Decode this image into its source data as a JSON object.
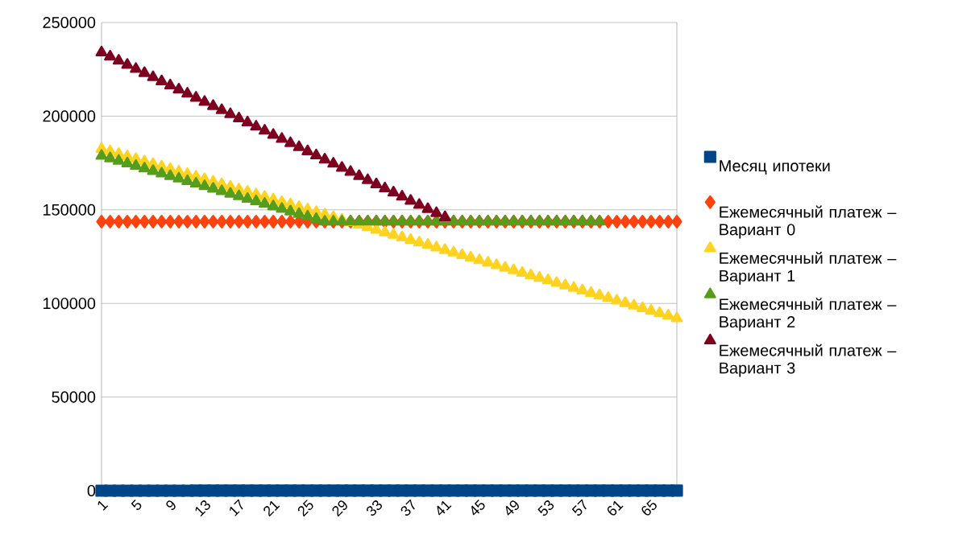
{
  "chart_data": {
    "type": "scatter",
    "categories": [
      "1",
      null,
      null,
      null,
      "5",
      null,
      null,
      null,
      "9",
      null,
      null,
      null,
      "13",
      null,
      null,
      null,
      "17",
      null,
      null,
      null,
      "21",
      null,
      null,
      null,
      "25",
      null,
      null,
      null,
      "29",
      null,
      null,
      null,
      "33",
      null,
      null,
      null,
      "37",
      null,
      null,
      null,
      "41",
      null,
      null,
      null,
      "45",
      null,
      null,
      null,
      "49",
      null,
      null,
      null,
      "53",
      null,
      null,
      null,
      "57",
      null,
      null,
      null,
      "61",
      null,
      null,
      null,
      "65",
      null,
      null,
      null
    ],
    "series": [
      {
        "name": "Месяц ипотеки",
        "color": "#004586",
        "marker": "square",
        "values": [
          1,
          2,
          3,
          4,
          5,
          6,
          7,
          8,
          9,
          10,
          11,
          12,
          13,
          14,
          15,
          16,
          17,
          18,
          19,
          20,
          21,
          22,
          23,
          24,
          25,
          26,
          27,
          28,
          29,
          30,
          31,
          32,
          33,
          34,
          35,
          36,
          37,
          38,
          39,
          40,
          41,
          42,
          43,
          44,
          45,
          46,
          47,
          48,
          49,
          50,
          51,
          52,
          53,
          54,
          55,
          56,
          57,
          58,
          59,
          60,
          61,
          62,
          63,
          64,
          65,
          66,
          67,
          68
        ]
      },
      {
        "name": "Ежемесячный платеж – Вариант 0",
        "color": "#ff420e",
        "marker": "diamond",
        "values": [
          143700,
          143700,
          143700,
          143700,
          143700,
          143700,
          143700,
          143700,
          143700,
          143700,
          143700,
          143700,
          143700,
          143700,
          143700,
          143700,
          143700,
          143700,
          143700,
          143700,
          143700,
          143700,
          143700,
          143700,
          143700,
          143700,
          143700,
          143700,
          143700,
          143700,
          143700,
          143700,
          143700,
          143700,
          143700,
          143700,
          143700,
          143700,
          143700,
          143700,
          143700,
          143700,
          143700,
          143700,
          143700,
          143700,
          143700,
          143700,
          143700,
          143700,
          143700,
          143700,
          143700,
          143700,
          143700,
          143700,
          143700,
          143700,
          143700,
          143700,
          143700,
          143700,
          143700,
          143700,
          143700,
          143700,
          143700,
          143700
        ]
      },
      {
        "name": "Ежемесячный платеж – Вариант 1",
        "color": "#ffd320",
        "marker": "triangle",
        "values": [
          182500,
          181150,
          179800,
          178450,
          177100,
          175750,
          174400,
          173050,
          171700,
          170350,
          169000,
          167650,
          166300,
          164950,
          163600,
          162250,
          160900,
          159550,
          158200,
          156850,
          155500,
          154150,
          152800,
          151450,
          150100,
          148750,
          147400,
          146050,
          144700,
          143350,
          142000,
          140650,
          139300,
          137950,
          136600,
          135250,
          133900,
          132550,
          131200,
          129850,
          128500,
          127150,
          125800,
          124450,
          123100,
          121750,
          120400,
          119050,
          117700,
          116350,
          115000,
          113650,
          112300,
          110950,
          109600,
          108250,
          106900,
          105550,
          104200,
          102850,
          101500,
          100150,
          98800,
          97450,
          96100,
          94750,
          93400,
          92050
        ]
      },
      {
        "name": "Ежемесячный платеж – Вариант 2",
        "color": "#579d1c",
        "marker": "triangle",
        "values": [
          178800,
          177450,
          176100,
          174750,
          173400,
          172050,
          170700,
          169350,
          168000,
          166650,
          165300,
          163950,
          162600,
          161250,
          159900,
          158550,
          157200,
          155850,
          154500,
          153150,
          151800,
          150450,
          149100,
          147750,
          146400,
          145050,
          143700,
          143700,
          143700,
          143700,
          143700,
          143700,
          143700,
          143700,
          143700,
          143700,
          143700,
          143700,
          143700,
          143700,
          143700,
          143700,
          143700,
          143700,
          143700,
          143700,
          143700,
          143700,
          143700,
          143700,
          143700,
          143700,
          143700,
          143700,
          143700,
          143700,
          143700,
          143700,
          143700,
          null,
          null,
          null,
          null,
          null,
          null,
          null,
          null,
          null
        ]
      },
      {
        "name": "Ежемесячный платеж – Вариант 3",
        "color": "#7e0021",
        "marker": "triangle",
        "values": [
          234000,
          231800,
          229600,
          227400,
          225200,
          223000,
          220800,
          218600,
          216400,
          214200,
          212000,
          209800,
          207600,
          205400,
          203200,
          201000,
          198800,
          196600,
          194400,
          192200,
          190000,
          187800,
          185600,
          183400,
          181200,
          179000,
          176800,
          174600,
          172400,
          170200,
          168000,
          165800,
          163600,
          161400,
          159200,
          157000,
          154800,
          152600,
          150400,
          148200,
          146000,
          null,
          null,
          null,
          null,
          null,
          null,
          null,
          null,
          null,
          null,
          null,
          null,
          null,
          null,
          null,
          null,
          null,
          null,
          null,
          null,
          null,
          null,
          null,
          null,
          null,
          null,
          null
        ]
      }
    ],
    "ylim": [
      0,
      250000
    ],
    "yticks": [
      0,
      50000,
      100000,
      150000,
      200000,
      250000
    ],
    "grid": "y",
    "legend": "right"
  }
}
